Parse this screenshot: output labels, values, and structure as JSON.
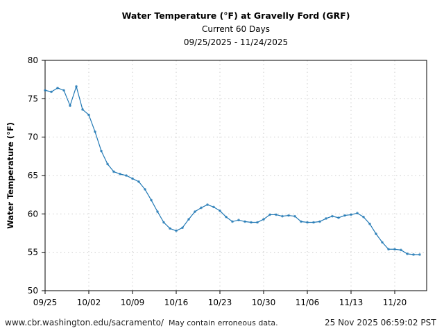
{
  "chart_data": {
    "type": "line",
    "title": "Water Temperature (°F) at Gravelly Ford (GRF)",
    "subtitle": "Current 60 Days",
    "date_range": "09/25/2025 - 11/24/2025",
    "xlabel": "",
    "ylabel": "Water Temperature (°F)",
    "ylim": [
      50,
      80
    ],
    "yticks": [
      50,
      55,
      60,
      65,
      70,
      75,
      80
    ],
    "xticks": [
      "09/25",
      "10/02",
      "10/09",
      "10/16",
      "10/23",
      "10/30",
      "11/06",
      "11/13",
      "11/20"
    ],
    "x_start": "09/25/2025",
    "grid": true,
    "color": "#1f77b4",
    "series": [
      {
        "name": "GRF",
        "values": [
          76.1,
          75.9,
          76.4,
          76.1,
          74.1,
          76.6,
          73.6,
          72.9,
          70.7,
          68.2,
          66.5,
          65.5,
          65.2,
          65.0,
          64.6,
          64.2,
          63.2,
          61.8,
          60.3,
          58.9,
          58.1,
          57.8,
          58.2,
          59.3,
          60.3,
          60.8,
          61.2,
          60.9,
          60.4,
          59.6,
          59.0,
          59.2,
          59.0,
          58.9,
          58.9,
          59.3,
          59.9,
          59.9,
          59.7,
          59.8,
          59.7,
          59.0,
          58.9,
          58.9,
          59.0,
          59.4,
          59.7,
          59.5,
          59.8,
          59.9,
          60.1,
          59.6,
          58.7,
          57.4,
          56.3,
          55.4,
          55.4,
          55.3,
          54.8,
          54.7,
          54.7
        ]
      }
    ]
  },
  "footer": {
    "url": "www.cbr.washington.edu/sacramento/",
    "note": "May contain erroneous data.",
    "timestamp": "25 Nov 2025 06:59:02 PST"
  }
}
